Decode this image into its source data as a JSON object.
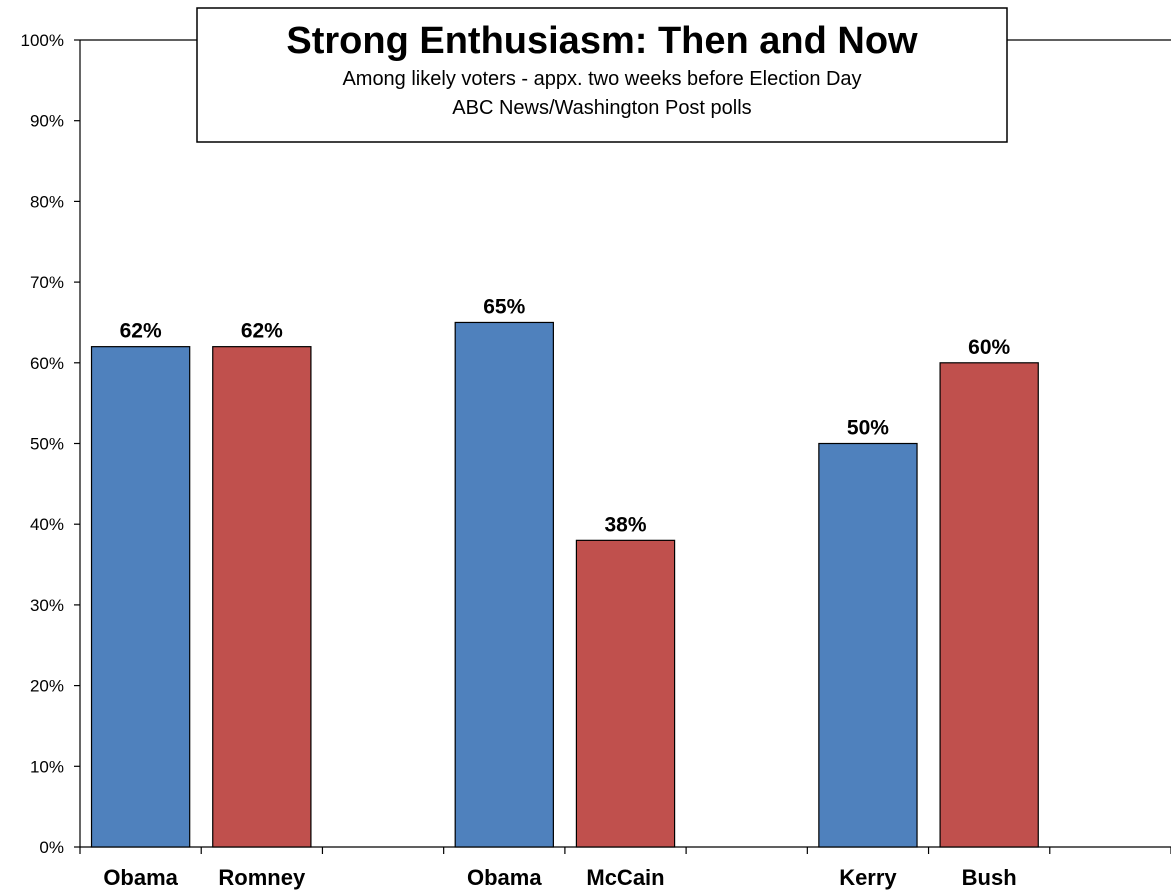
{
  "chart_data": {
    "type": "bar",
    "title": "Strong Enthusiasm: Then and Now",
    "subtitle_lines": [
      "Among likely voters - appx. two weeks before Election Day",
      "ABC News/Washington Post polls"
    ],
    "xlabel": "",
    "ylabel": "",
    "ylim": [
      0,
      100
    ],
    "yticks": [
      "0%",
      "10%",
      "20%",
      "30%",
      "40%",
      "50%",
      "60%",
      "70%",
      "80%",
      "90%",
      "100%"
    ],
    "grid": false,
    "legend": "none",
    "slots": 9,
    "bars": [
      {
        "category": "Obama",
        "value": 62,
        "label": "62%",
        "color": "#4F81BD",
        "slot": 0
      },
      {
        "category": "Romney",
        "value": 62,
        "label": "62%",
        "color": "#C0504D",
        "slot": 1
      },
      {
        "category": "Obama",
        "value": 65,
        "label": "65%",
        "color": "#4F81BD",
        "slot": 3
      },
      {
        "category": "McCain",
        "value": 38,
        "label": "38%",
        "color": "#C0504D",
        "slot": 4
      },
      {
        "category": "Kerry",
        "value": 50,
        "label": "50%",
        "color": "#4F81BD",
        "slot": 6
      },
      {
        "category": "Bush",
        "value": 60,
        "label": "60%",
        "color": "#C0504D",
        "slot": 7
      }
    ],
    "colors": {
      "democrat": "#4F81BD",
      "republican": "#C0504D"
    }
  }
}
